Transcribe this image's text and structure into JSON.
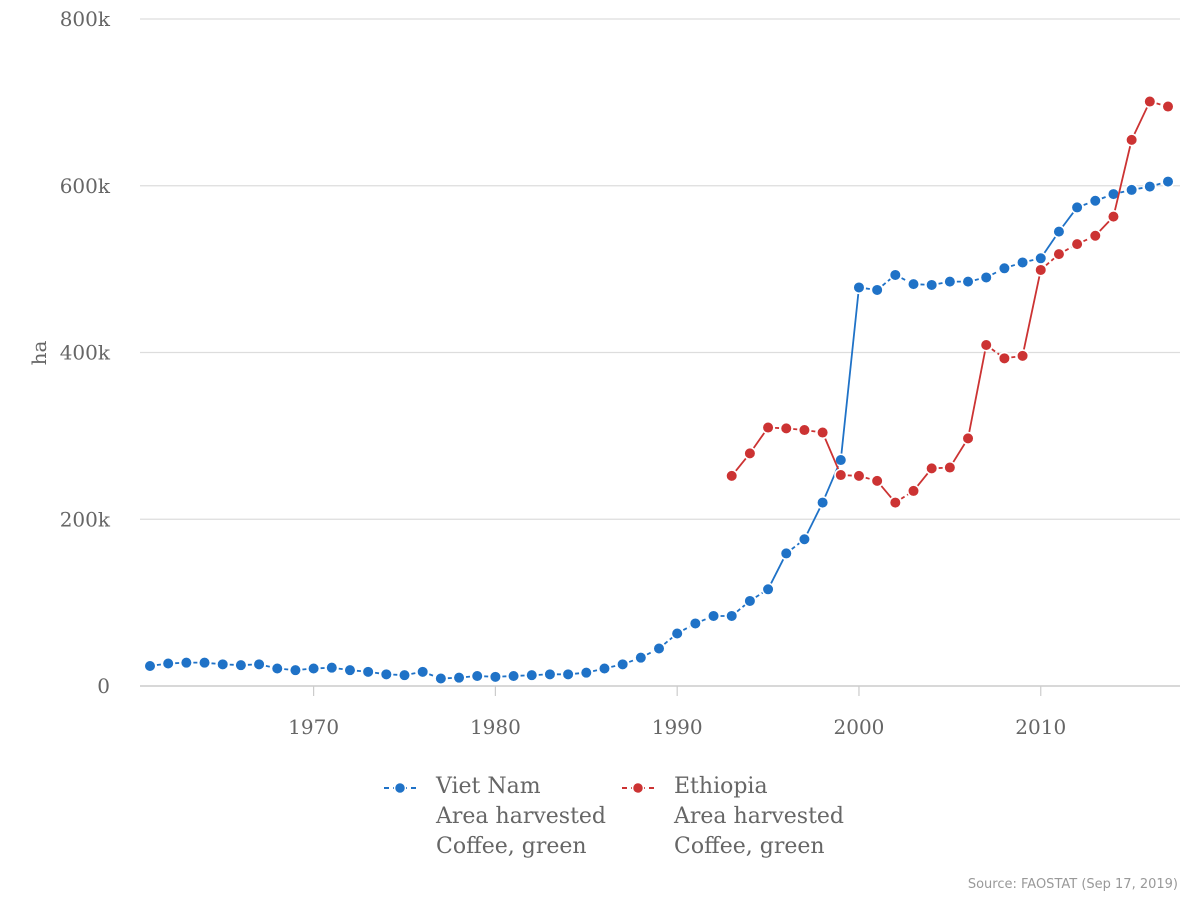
{
  "chart_data": {
    "type": "line",
    "title": "",
    "xlabel": "",
    "ylabel": "ha",
    "xlim": [
      1961,
      2017
    ],
    "ylim": [
      0,
      800000
    ],
    "yticks": [
      0,
      200000,
      400000,
      600000,
      800000
    ],
    "ytick_labels": [
      "0",
      "200k",
      "400k",
      "600k",
      "800k"
    ],
    "xticks": [
      1970,
      1980,
      1990,
      2000,
      2010
    ],
    "xtick_labels": [
      "1970",
      "1980",
      "1990",
      "2000",
      "2010"
    ],
    "grid": "horizontal",
    "legend_position": "bottom",
    "series": [
      {
        "name": "Viet Nam",
        "legend_lines": [
          "Viet Nam",
          "Area harvested",
          "Coffee, green"
        ],
        "color": "#1f72c7",
        "line_style": "dashed",
        "x": [
          1961,
          1962,
          1963,
          1964,
          1965,
          1966,
          1967,
          1968,
          1969,
          1970,
          1971,
          1972,
          1973,
          1974,
          1975,
          1976,
          1977,
          1978,
          1979,
          1980,
          1981,
          1982,
          1983,
          1984,
          1985,
          1986,
          1987,
          1988,
          1989,
          1990,
          1991,
          1992,
          1993,
          1994,
          1995,
          1996,
          1997,
          1998,
          1999,
          2000,
          2001,
          2002,
          2003,
          2004,
          2005,
          2006,
          2007,
          2008,
          2009,
          2010,
          2011,
          2012,
          2013,
          2014,
          2015,
          2016,
          2017
        ],
        "y": [
          24000,
          27000,
          28000,
          28000,
          26000,
          25000,
          26000,
          21000,
          19000,
          21000,
          22000,
          19000,
          17000,
          14000,
          13000,
          17000,
          9000,
          10000,
          12000,
          11000,
          12000,
          13000,
          14000,
          14000,
          16000,
          21000,
          26000,
          34000,
          45000,
          63000,
          75000,
          84000,
          84000,
          102000,
          116000,
          159000,
          176000,
          220000,
          271000,
          478000,
          475000,
          493000,
          482000,
          481000,
          485000,
          485000,
          490000,
          501000,
          508000,
          513000,
          545000,
          574000,
          582000,
          590000,
          595000,
          599000,
          605000
        ]
      },
      {
        "name": "Ethiopia",
        "legend_lines": [
          "Ethiopia",
          "Area harvested",
          "Coffee, green"
        ],
        "color": "#cc3333",
        "line_style": "mixed",
        "x": [
          1993,
          1994,
          1995,
          1996,
          1997,
          1998,
          1999,
          2000,
          2001,
          2002,
          2003,
          2004,
          2005,
          2006,
          2007,
          2008,
          2009,
          2010,
          2011,
          2012,
          2013,
          2014,
          2015,
          2016,
          2017
        ],
        "y": [
          252000,
          279000,
          310000,
          309000,
          307000,
          304000,
          253000,
          252000,
          246000,
          220000,
          234000,
          261000,
          262000,
          297000,
          409000,
          393000,
          396000,
          499000,
          518000,
          530000,
          540000,
          563000,
          655000,
          701000,
          695000
        ]
      }
    ]
  },
  "source": "Source: FAOSTAT (Sep 17, 2019)"
}
